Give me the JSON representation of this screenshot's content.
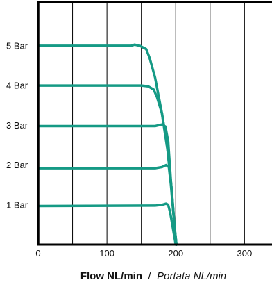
{
  "chart_data": {
    "type": "line",
    "xlabel": "Flow NL/min",
    "xlabel_separator": "/",
    "xlabel_alt": "Portata NL/min",
    "xlim": [
      0,
      340
    ],
    "ylim": [
      0,
      6.1
    ],
    "x_ticks": [
      {
        "value": 0,
        "label": "0"
      },
      {
        "value": 100,
        "label": "100"
      },
      {
        "value": 200,
        "label": "200"
      },
      {
        "value": 300,
        "label": "300"
      }
    ],
    "x_gridlines": [
      50,
      100,
      150,
      200,
      250,
      300
    ],
    "grid": "vertical",
    "series": [
      {
        "name": "5 Bar",
        "label_y": 5,
        "points": [
          [
            0,
            5.0
          ],
          [
            135,
            5.0
          ],
          [
            140,
            5.03
          ],
          [
            148,
            5.0
          ],
          [
            157,
            4.92
          ],
          [
            162,
            4.7
          ],
          [
            170,
            4.2
          ],
          [
            180,
            3.3
          ],
          [
            188,
            2.4
          ],
          [
            194,
            1.4
          ],
          [
            199,
            0.3
          ],
          [
            201,
            0
          ]
        ]
      },
      {
        "name": "4 Bar",
        "label_y": 4,
        "points": [
          [
            0,
            4.0
          ],
          [
            150,
            4.0
          ],
          [
            160,
            3.98
          ],
          [
            168,
            3.9
          ],
          [
            173,
            3.7
          ],
          [
            180,
            3.3
          ],
          [
            188,
            2.4
          ],
          [
            194,
            1.4
          ],
          [
            199,
            0.3
          ],
          [
            201,
            0
          ]
        ]
      },
      {
        "name": "3 Bar",
        "label_y": 3,
        "points": [
          [
            0,
            2.98
          ],
          [
            170,
            2.98
          ],
          [
            180,
            3.02
          ],
          [
            185,
            2.97
          ],
          [
            189,
            2.6
          ],
          [
            193,
            1.6
          ],
          [
            198,
            0.5
          ],
          [
            201,
            0
          ]
        ]
      },
      {
        "name": "2 Bar",
        "label_y": 2,
        "points": [
          [
            0,
            1.92
          ],
          [
            170,
            1.92
          ],
          [
            180,
            1.95
          ],
          [
            186,
            2.0
          ],
          [
            190,
            1.95
          ],
          [
            193,
            1.5
          ],
          [
            198,
            0.5
          ],
          [
            201,
            0
          ]
        ]
      },
      {
        "name": "1 Bar",
        "label_y": 1,
        "points": [
          [
            0,
            0.97
          ],
          [
            170,
            0.98
          ],
          [
            180,
            1.0
          ],
          [
            186,
            1.03
          ],
          [
            189,
            1.0
          ],
          [
            192,
            0.8
          ],
          [
            197,
            0.3
          ],
          [
            200,
            0
          ]
        ]
      }
    ],
    "colors": {
      "line": "#159a85",
      "axis": "#000000",
      "grid": "#000000"
    }
  }
}
